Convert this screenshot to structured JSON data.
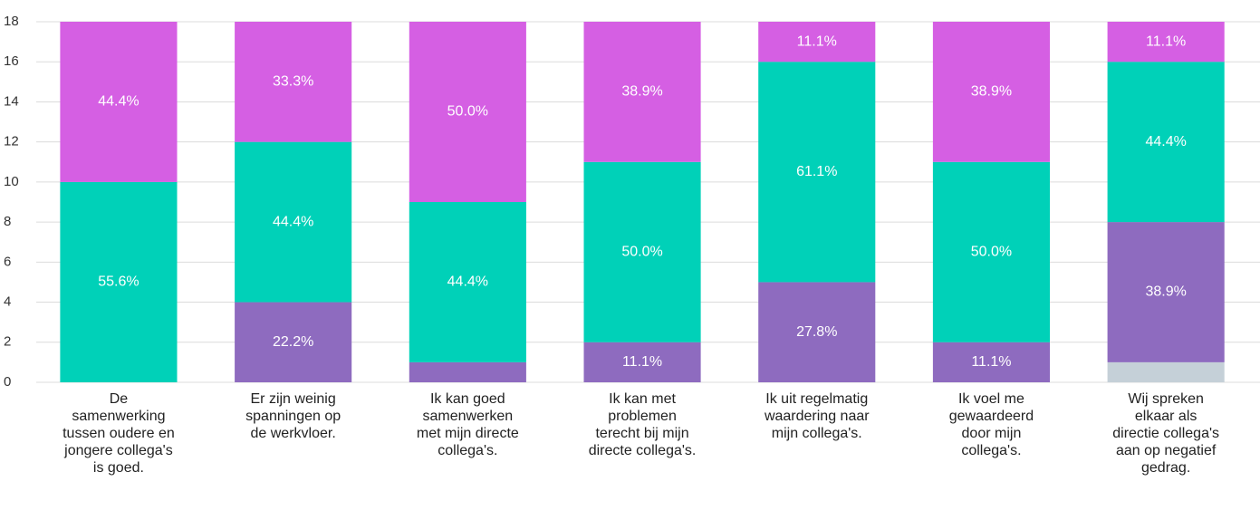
{
  "chart_data": {
    "type": "stacked_bar",
    "categories": [
      "De samenwerking tussen oudere en jongere collega's is goed.",
      "Er zijn weinig spanningen op de werkvloer.",
      "Ik kan goed samenwerken met mijn directe collega's.",
      "Ik kan met problemen terecht bij mijn directe collega's.",
      "Ik uit regelmatig waardering naar mijn collega's.",
      "Ik voel me gewaardeerd door mijn collega's.",
      "Wij spreken elkaar als directie collega's aan op negatief gedrag."
    ],
    "series": [
      {
        "color": "#c5d0d8",
        "values": [
          0,
          0,
          0,
          0,
          0,
          0,
          1
        ],
        "value_labels": [
          null,
          null,
          null,
          null,
          null,
          null,
          null
        ]
      },
      {
        "color": "#8e6bbf",
        "values": [
          0,
          4,
          1,
          2,
          5,
          2,
          7
        ],
        "value_labels": [
          null,
          "22.2%",
          null,
          "11.1%",
          "27.8%",
          "11.1%",
          "38.9%"
        ]
      },
      {
        "color": "#00d1b8",
        "values": [
          10,
          8,
          8,
          9,
          11,
          9,
          8
        ],
        "value_labels": [
          "55.6%",
          "44.4%",
          "44.4%",
          "50.0%",
          "61.1%",
          "50.0%",
          "44.4%"
        ]
      },
      {
        "color": "#d55fe3",
        "values": [
          8,
          6,
          9,
          7,
          2,
          7,
          2
        ],
        "value_labels": [
          "44.4%",
          "33.3%",
          "50.0%",
          "38.9%",
          "11.1%",
          "38.9%",
          "11.1%"
        ]
      }
    ],
    "ylim": [
      0,
      18
    ],
    "yticks": [
      0,
      2,
      4,
      6,
      8,
      10,
      12,
      14,
      16,
      18
    ],
    "grid": true
  }
}
